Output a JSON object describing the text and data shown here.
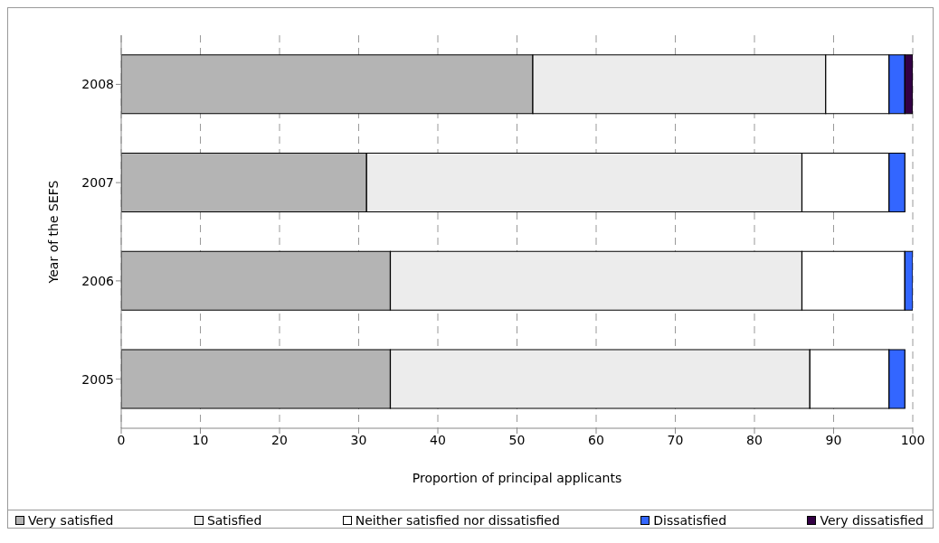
{
  "chart_data": {
    "type": "bar",
    "orientation": "horizontal",
    "stacked": true,
    "xlabel": "Proportion of principal applicants",
    "ylabel": "Year of the SEFS",
    "categories": [
      "2008",
      "2007",
      "2006",
      "2005"
    ],
    "series": [
      {
        "name": "Very satisfied",
        "color": "#b4b4b4",
        "values": [
          52,
          31,
          34,
          34
        ]
      },
      {
        "name": "Satisfied",
        "color": "#ececec",
        "values": [
          37,
          55,
          52,
          53
        ]
      },
      {
        "name": "Neither satisfied nor dissatisfied",
        "color": "#ffffff",
        "values": [
          8,
          11,
          13,
          10
        ]
      },
      {
        "name": "Dissatisfied",
        "color": "#3366ff",
        "values": [
          2,
          2,
          1,
          2
        ]
      },
      {
        "name": "Very dissatisfied",
        "color": "#330044",
        "values": [
          1,
          null,
          null,
          null
        ]
      }
    ],
    "xlim": [
      0,
      100
    ],
    "xticks": [
      0,
      10,
      20,
      30,
      40,
      50,
      60,
      70,
      80,
      90,
      100
    ],
    "grid": "x",
    "legend": "bottom"
  }
}
